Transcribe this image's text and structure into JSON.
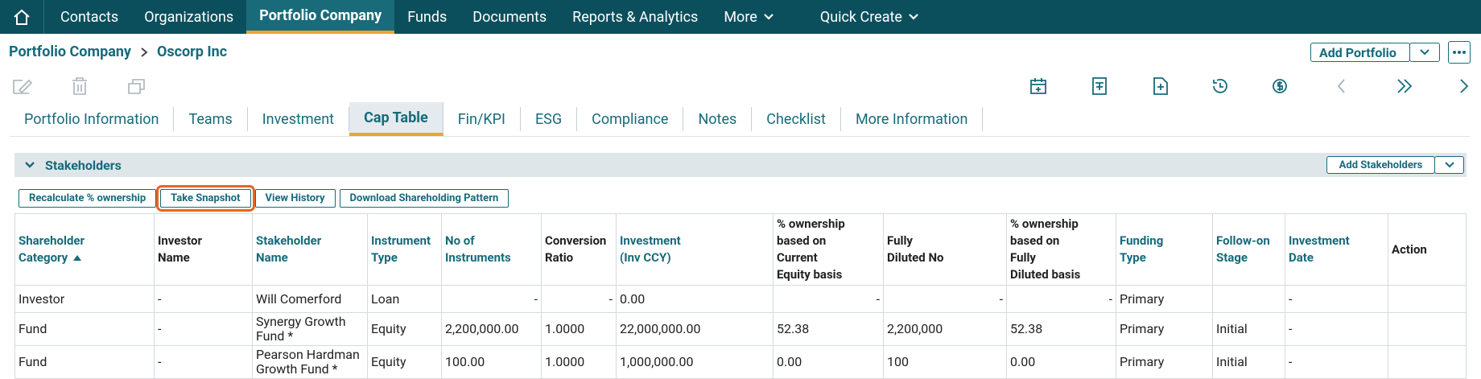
{
  "nav": {
    "items": [
      {
        "label": "Contacts"
      },
      {
        "label": "Organizations"
      },
      {
        "label": "Portfolio Company"
      },
      {
        "label": "Funds"
      },
      {
        "label": "Documents"
      },
      {
        "label": "Reports & Analytics"
      },
      {
        "label": "More",
        "menu": true
      },
      {
        "label": "Quick Create",
        "menu": true
      }
    ],
    "active": 2
  },
  "breadcrumb": [
    "Portfolio Company",
    "Oscorp Inc"
  ],
  "actions": {
    "add_portfolio": "Add Portfolio"
  },
  "tabs": {
    "items": [
      "Portfolio Information",
      "Teams",
      "Investment",
      "Cap Table",
      "Fin/KPI",
      "ESG",
      "Compliance",
      "Notes",
      "Checklist",
      "More Information"
    ],
    "active": 3
  },
  "section": {
    "title": "Stakeholders",
    "add_button": "Add Stakeholders"
  },
  "toolbar": {
    "buttons": [
      "Recalculate % ownership",
      "Take Snapshot",
      "View History",
      "Download Shareholding Pattern"
    ],
    "highlighted": 1
  },
  "table": {
    "columns": [
      {
        "lines": [
          "Shareholder",
          "Category"
        ],
        "sortable": true,
        "sorted": "asc",
        "numeric": false
      },
      {
        "lines": [
          "Investor",
          "Name"
        ],
        "sortable": false,
        "numeric": false
      },
      {
        "lines": [
          "Stakeholder",
          "Name"
        ],
        "sortable": true,
        "numeric": false
      },
      {
        "lines": [
          "Instrument",
          "Type"
        ],
        "sortable": true,
        "numeric": false
      },
      {
        "lines": [
          "No of",
          "Instruments"
        ],
        "sortable": true,
        "numeric": true
      },
      {
        "lines": [
          "Conversion",
          "Ratio"
        ],
        "sortable": false,
        "numeric": true
      },
      {
        "lines": [
          "Investment",
          "(Inv CCY)"
        ],
        "sortable": true,
        "numeric": false
      },
      {
        "lines": [
          "% ownership",
          "based on",
          "Current",
          "Equity basis"
        ],
        "sortable": false,
        "numeric": true
      },
      {
        "lines": [
          "Fully",
          "Diluted No"
        ],
        "sortable": false,
        "numeric": true
      },
      {
        "lines": [
          "% ownership",
          "based on",
          "Fully",
          "Diluted basis"
        ],
        "sortable": false,
        "numeric": true
      },
      {
        "lines": [
          "Funding",
          "Type"
        ],
        "sortable": true,
        "numeric": false
      },
      {
        "lines": [
          "Follow-on",
          "Stage"
        ],
        "sortable": true,
        "numeric": false
      },
      {
        "lines": [
          "Investment",
          "Date"
        ],
        "sortable": true,
        "numeric": false
      },
      {
        "lines": [
          "Action"
        ],
        "sortable": false,
        "numeric": false
      }
    ],
    "rows": [
      [
        "Investor",
        "-",
        "Will Comerford",
        "Loan",
        "-",
        "-",
        "0.00",
        "-",
        "-",
        "-",
        "Primary",
        null,
        "-",
        null
      ],
      [
        "Fund",
        "-",
        "Synergy Growth Fund *",
        "Equity",
        "2,200,000.00",
        "1.0000",
        "22,000,000.00",
        "52.38",
        "2,200,000",
        "52.38",
        "Primary",
        "Initial",
        "-",
        null
      ],
      [
        "Fund",
        "-",
        "Pearson Hardman Growth Fund *",
        "Equity",
        "100.00",
        "1.0000",
        "1,000,000.00",
        "0.00",
        "100",
        "0.00",
        "Primary",
        "Initial",
        "-",
        null
      ]
    ]
  }
}
